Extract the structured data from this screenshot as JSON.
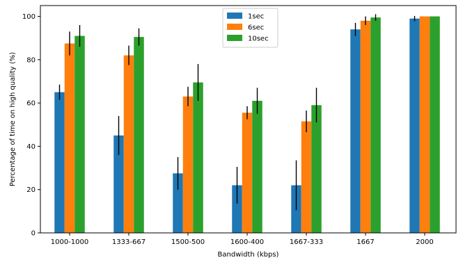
{
  "chart_data": {
    "type": "bar",
    "title": "",
    "xlabel": "Bandwidth (kbps)",
    "ylabel": "Percentage of time on high quality (%)",
    "ylim": [
      0,
      105
    ],
    "yticks": [
      0,
      20,
      40,
      60,
      80,
      100
    ],
    "categories": [
      "1000-1000",
      "1333-667",
      "1500-500",
      "1600-400",
      "1667-333",
      "1667",
      "2000"
    ],
    "legend_position": "top-center",
    "grid": false,
    "series": [
      {
        "name": "1sec",
        "color": "#1f77b4",
        "values": [
          65,
          45,
          27.5,
          22,
          22,
          94,
          99
        ],
        "errors": [
          3.5,
          9,
          7.5,
          8.5,
          11.5,
          3,
          1.2
        ]
      },
      {
        "name": "6sec",
        "color": "#ff7f0e",
        "values": [
          87.5,
          82,
          63,
          55.5,
          51.5,
          98,
          100
        ],
        "errors": [
          5.5,
          4.5,
          4.5,
          3,
          5,
          2,
          0
        ]
      },
      {
        "name": "10sec",
        "color": "#2ca02c",
        "values": [
          91,
          90.5,
          69.5,
          61,
          59,
          99.5,
          100
        ],
        "errors": [
          5,
          4,
          8.5,
          6,
          8,
          1.5,
          0
        ]
      }
    ]
  }
}
